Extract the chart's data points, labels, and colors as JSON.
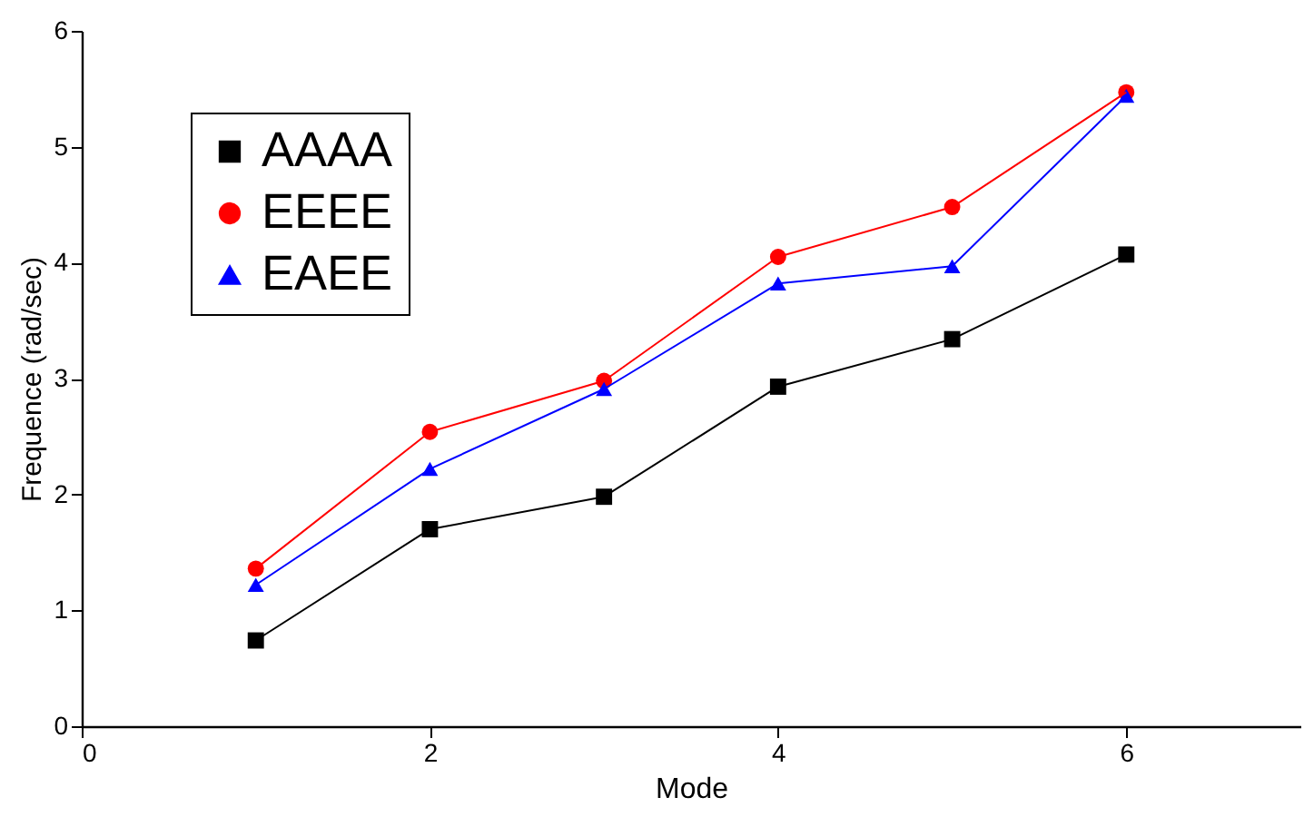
{
  "chart_data": {
    "type": "line",
    "xlabel": "Mode",
    "ylabel": "Frequence (rad/sec)",
    "x": [
      1,
      2,
      3,
      4,
      5,
      6
    ],
    "series": [
      {
        "name": "AAAA",
        "color": "#000000",
        "marker": "square",
        "values": [
          0.74,
          1.7,
          1.98,
          2.93,
          3.34,
          4.07
        ]
      },
      {
        "name": "EEEE",
        "color": "#ff0000",
        "marker": "circle",
        "values": [
          1.36,
          2.54,
          2.98,
          4.05,
          4.48,
          5.47
        ]
      },
      {
        "name": "EAEE",
        "color": "#0000ff",
        "marker": "triangle",
        "values": [
          1.22,
          2.22,
          2.91,
          3.82,
          3.97,
          5.44
        ]
      }
    ],
    "xlim": [
      0,
      7
    ],
    "xticks": [
      0,
      2,
      4,
      6
    ],
    "ylim": [
      0,
      6
    ],
    "yticks": [
      0,
      1,
      2,
      3,
      4,
      5,
      6
    ],
    "grid": false,
    "legend": "top left",
    "line_style": "solid"
  }
}
